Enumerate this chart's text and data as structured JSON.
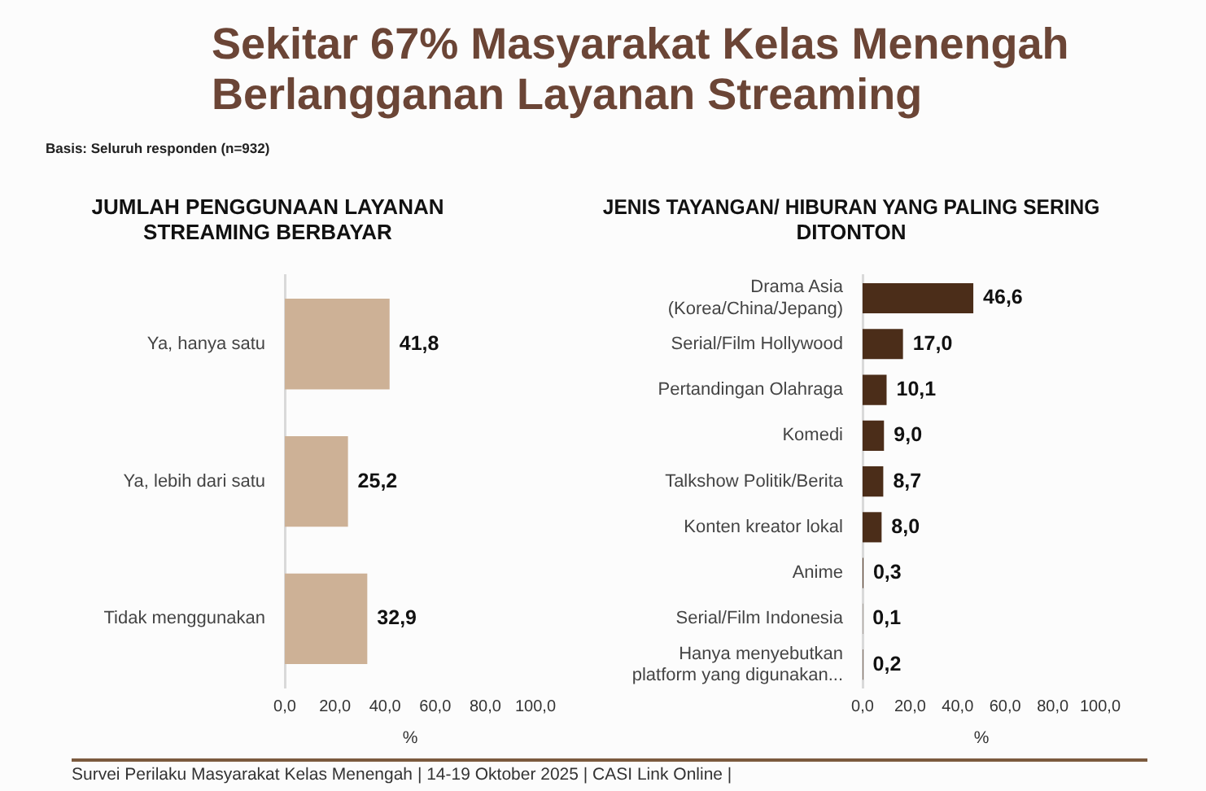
{
  "chart_data": [
    {
      "type": "bar",
      "orientation": "horizontal",
      "title": "JUMLAH PENGGUNAAN LAYANAN STREAMING BERBAYAR",
      "categories": [
        "Ya, hanya satu",
        "Ya, lebih dari satu",
        "Tidak menggunakan"
      ],
      "values": [
        41.8,
        25.2,
        32.9
      ],
      "color": "#cdb196",
      "value_labels": [
        "41,8",
        "25,2",
        "32,9"
      ],
      "xlabel": "%",
      "xlim": [
        0,
        100
      ],
      "xticks": [
        {
          "value": 0,
          "label": "0,0"
        },
        {
          "value": 20,
          "label": "20,0"
        },
        {
          "value": 40,
          "label": "40,0"
        },
        {
          "value": 60,
          "label": "60,0"
        },
        {
          "value": 80,
          "label": "80,0"
        },
        {
          "value": 100,
          "label": "100,0"
        }
      ],
      "annotations": [
        "Sekitar 67% Masyarakat Kelas Menengah Berlangganan Layanan Streaming",
        "Basis: Seluruh responden (n=932)",
        "Survei Perilaku Masyarakat Kelas Menengah | 14-19 Oktober 2025 | CASI Link Online |"
      ]
    },
    {
      "type": "bar",
      "orientation": "horizontal",
      "title": "JENIS TAYANGAN/ HIBURAN YANG PALING SERING DITONTON",
      "categories": [
        "Drama Asia (Korea/China/Jepang)",
        "Serial/Film Hollywood",
        "Pertandingan Olahraga",
        "Komedi",
        "Talkshow Politik/Berita",
        "Konten kreator lokal",
        "Anime",
        "Serial/Film Indonesia",
        "Hanya menyebutkan platform yang digunakan..."
      ],
      "values": [
        46.6,
        17.0,
        10.1,
        9.0,
        8.7,
        8.0,
        0.3,
        0.1,
        0.2
      ],
      "color": "#4b2d19",
      "value_labels": [
        "46,6",
        "17,0",
        "10,1",
        "9,0",
        "8,7",
        "8,0",
        "0,3",
        "0,1",
        "0,2"
      ],
      "xlabel": "%",
      "xlim": [
        0,
        100
      ],
      "xticks": [
        {
          "value": 0,
          "label": "0,0"
        },
        {
          "value": 20,
          "label": "20,0"
        },
        {
          "value": 40,
          "label": "40,0"
        },
        {
          "value": 60,
          "label": "60,0"
        },
        {
          "value": 80,
          "label": "80,0"
        },
        {
          "value": 100,
          "label": "100,0"
        }
      ]
    }
  ]
}
